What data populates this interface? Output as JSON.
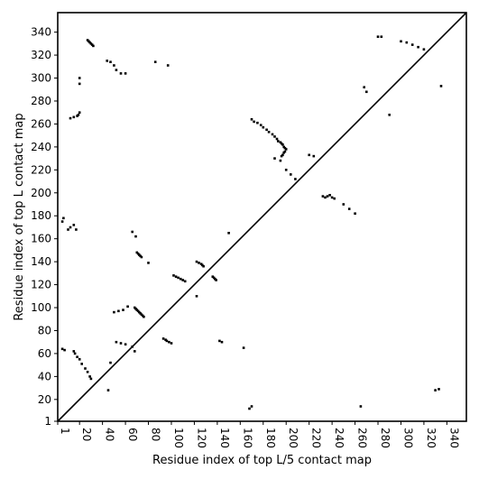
{
  "chart_data": {
    "type": "scatter",
    "title": "",
    "xlabel": "Residue index of top L/5 contact map",
    "ylabel": "Residue index of top L contact map",
    "xlim": [
      1,
      357
    ],
    "ylim": [
      1,
      357
    ],
    "x_ticks": [
      1,
      20,
      40,
      60,
      80,
      100,
      120,
      140,
      160,
      180,
      200,
      220,
      240,
      260,
      280,
      300,
      320,
      340
    ],
    "y_ticks": [
      1,
      20,
      40,
      60,
      80,
      100,
      120,
      140,
      160,
      180,
      200,
      220,
      240,
      260,
      280,
      300,
      320,
      340
    ],
    "x_tick_rotation": -90,
    "grid": false,
    "marker_color": "#000000",
    "diagonal": {
      "from": [
        1,
        1
      ],
      "to": [
        357,
        357
      ],
      "color": "#000000"
    },
    "series": [
      {
        "region": "upper-left (top L/5)",
        "points": [
          [
            27,
            333
          ],
          [
            28,
            332
          ],
          [
            29,
            331
          ],
          [
            30,
            330
          ],
          [
            31,
            329
          ],
          [
            32,
            328
          ],
          [
            44,
            315
          ],
          [
            47,
            314
          ],
          [
            50,
            311
          ],
          [
            52,
            307
          ],
          [
            56,
            304
          ],
          [
            60,
            304
          ],
          [
            97,
            311
          ],
          [
            86,
            314
          ],
          [
            20,
            295
          ],
          [
            20,
            300
          ],
          [
            12,
            265
          ],
          [
            15,
            266
          ],
          [
            18,
            267
          ],
          [
            19,
            268
          ],
          [
            20,
            270
          ],
          [
            170,
            264
          ],
          [
            172,
            262
          ],
          [
            175,
            261
          ],
          [
            178,
            259
          ],
          [
            180,
            257
          ],
          [
            183,
            255
          ],
          [
            185,
            253
          ],
          [
            188,
            251
          ],
          [
            190,
            249
          ],
          [
            192,
            247
          ],
          [
            193,
            245
          ],
          [
            195,
            244
          ],
          [
            196,
            243
          ],
          [
            197,
            242
          ],
          [
            198,
            240
          ],
          [
            199,
            239
          ],
          [
            200,
            238
          ],
          [
            199,
            236
          ],
          [
            198,
            235
          ],
          [
            197,
            233
          ],
          [
            196,
            232
          ],
          [
            220,
            233
          ],
          [
            224,
            232
          ],
          [
            66,
            166
          ],
          [
            69,
            162
          ],
          [
            70,
            148
          ],
          [
            71,
            147
          ],
          [
            72,
            146
          ],
          [
            73,
            145
          ],
          [
            74,
            144
          ],
          [
            80,
            139
          ],
          [
            102,
            128
          ],
          [
            104,
            127
          ],
          [
            106,
            126
          ],
          [
            108,
            125
          ],
          [
            110,
            124
          ],
          [
            112,
            123
          ],
          [
            122,
            140
          ],
          [
            124,
            139
          ],
          [
            126,
            138
          ],
          [
            127,
            137
          ],
          [
            128,
            136
          ],
          [
            136,
            127
          ],
          [
            137,
            126
          ],
          [
            138,
            125
          ],
          [
            139,
            124
          ],
          [
            280,
            336
          ],
          [
            283,
            336
          ],
          [
            300,
            332
          ],
          [
            305,
            331
          ],
          [
            310,
            329
          ],
          [
            315,
            327
          ],
          [
            320,
            325
          ],
          [
            268,
            292
          ],
          [
            270,
            288
          ],
          [
            290,
            268
          ],
          [
            335,
            293
          ],
          [
            150,
            165
          ]
        ]
      },
      {
        "region": "lower-right (top L)",
        "points": [
          [
            5,
            64
          ],
          [
            7,
            63
          ],
          [
            15,
            62
          ],
          [
            16,
            60
          ],
          [
            18,
            57
          ],
          [
            20,
            55
          ],
          [
            22,
            51
          ],
          [
            25,
            47
          ],
          [
            27,
            44
          ],
          [
            29,
            40
          ],
          [
            30,
            38
          ],
          [
            45,
            28
          ],
          [
            47,
            52
          ],
          [
            50,
            96
          ],
          [
            54,
            97
          ],
          [
            58,
            98
          ],
          [
            62,
            101
          ],
          [
            68,
            100
          ],
          [
            69,
            99
          ],
          [
            70,
            98
          ],
          [
            71,
            97
          ],
          [
            72,
            96
          ],
          [
            73,
            95
          ],
          [
            74,
            94
          ],
          [
            75,
            93
          ],
          [
            76,
            92
          ],
          [
            52,
            70
          ],
          [
            56,
            69
          ],
          [
            60,
            68
          ],
          [
            66,
            66
          ],
          [
            68,
            62
          ],
          [
            93,
            73
          ],
          [
            95,
            72
          ],
          [
            96,
            71
          ],
          [
            98,
            70
          ],
          [
            100,
            69
          ],
          [
            122,
            110
          ],
          [
            142,
            71
          ],
          [
            144,
            70
          ],
          [
            163,
            65
          ],
          [
            168,
            12
          ],
          [
            170,
            14
          ],
          [
            190,
            230
          ],
          [
            195,
            228
          ],
          [
            200,
            220
          ],
          [
            204,
            216
          ],
          [
            208,
            212
          ],
          [
            232,
            197
          ],
          [
            234,
            196
          ],
          [
            236,
            197
          ],
          [
            238,
            198
          ],
          [
            240,
            196
          ],
          [
            242,
            195
          ],
          [
            250,
            190
          ],
          [
            255,
            186
          ],
          [
            260,
            182
          ],
          [
            265,
            14
          ],
          [
            330,
            28
          ],
          [
            333,
            29
          ],
          [
            10,
            168
          ],
          [
            12,
            170
          ],
          [
            15,
            172
          ],
          [
            17,
            168
          ],
          [
            5,
            175
          ],
          [
            6,
            178
          ]
        ]
      }
    ]
  }
}
